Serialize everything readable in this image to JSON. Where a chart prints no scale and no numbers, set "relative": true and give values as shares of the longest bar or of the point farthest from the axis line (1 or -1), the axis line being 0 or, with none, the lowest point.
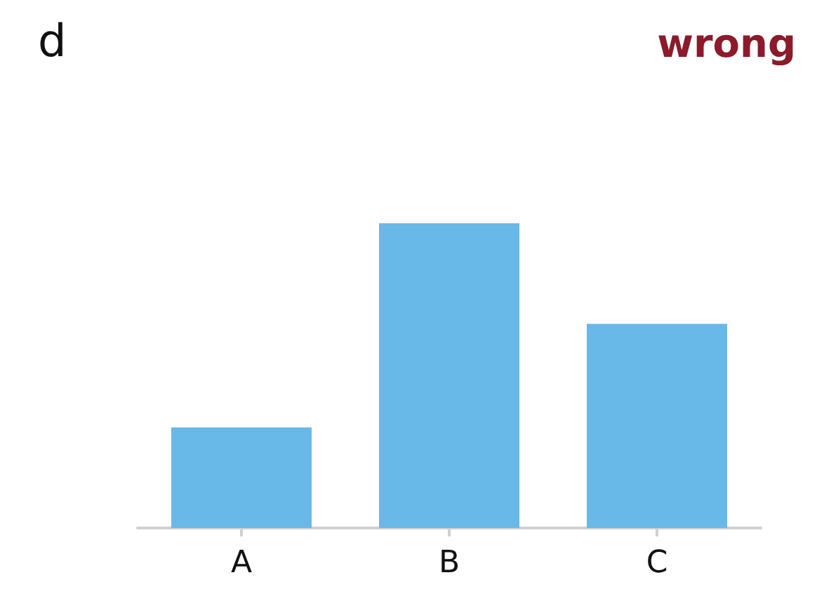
{
  "chart_data": {
    "type": "bar",
    "title": "d",
    "annotations": [
      "wrong"
    ],
    "categories": [
      "A",
      "B",
      "C"
    ],
    "values": [
      0.33,
      1,
      0.67
    ],
    "color": "#68b9e8",
    "relative": true
  }
}
